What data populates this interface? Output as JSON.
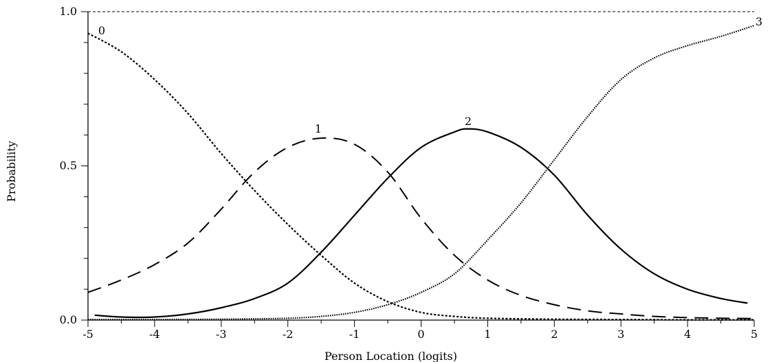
{
  "chart_data": {
    "type": "line",
    "title": "",
    "xlabel": "Person Location (logits)",
    "ylabel": "Probability",
    "xlim": [
      -5,
      5
    ],
    "ylim": [
      0,
      1
    ],
    "x_ticks": [
      "-5",
      "-4",
      "-3",
      "-2",
      "-1",
      "0",
      "1",
      "2",
      "3",
      "4",
      "5"
    ],
    "y_ticks": [
      "0.0",
      "0.5",
      "1.0"
    ],
    "reference_line_y": 1.0,
    "grid": false,
    "series": [
      {
        "name": "0",
        "style": "short-dash",
        "x": [
          -5,
          -4.5,
          -4,
          -3.5,
          -3,
          -2.5,
          -2,
          -1.5,
          -1,
          -0.5,
          0,
          0.5,
          1,
          2,
          3,
          4,
          5
        ],
        "y": [
          0.93,
          0.87,
          0.78,
          0.67,
          0.54,
          0.42,
          0.31,
          0.21,
          0.12,
          0.06,
          0.025,
          0.012,
          0.006,
          0.003,
          0.002,
          0.001,
          0.001
        ]
      },
      {
        "name": "1",
        "style": "long-dash",
        "x": [
          -5,
          -4.5,
          -4,
          -3.5,
          -3,
          -2.5,
          -2,
          -1.5,
          -1,
          -0.5,
          0,
          0.5,
          1,
          1.5,
          2,
          2.5,
          3,
          3.5,
          4,
          4.5,
          5
        ],
        "y": [
          0.09,
          0.13,
          0.18,
          0.25,
          0.36,
          0.48,
          0.56,
          0.59,
          0.57,
          0.48,
          0.33,
          0.21,
          0.13,
          0.08,
          0.05,
          0.03,
          0.02,
          0.012,
          0.008,
          0.006,
          0.005
        ]
      },
      {
        "name": "2",
        "style": "solid",
        "x": [
          -4.9,
          -4.5,
          -4,
          -3.5,
          -3,
          -2.5,
          -2,
          -1.5,
          -1,
          -0.5,
          0,
          0.5,
          0.7,
          1,
          1.5,
          2,
          2.5,
          3,
          3.5,
          4,
          4.5,
          4.9
        ],
        "y": [
          0.016,
          0.01,
          0.01,
          0.02,
          0.04,
          0.07,
          0.12,
          0.22,
          0.34,
          0.46,
          0.56,
          0.61,
          0.62,
          0.61,
          0.56,
          0.47,
          0.34,
          0.23,
          0.15,
          0.1,
          0.07,
          0.055
        ]
      },
      {
        "name": "3",
        "style": "dotted",
        "x": [
          -5,
          -4,
          -3,
          -2,
          -1.5,
          -1,
          -0.5,
          0,
          0.5,
          1,
          1.5,
          2,
          2.5,
          3,
          3.5,
          4,
          4.5,
          5
        ],
        "y": [
          0.002,
          0.002,
          0.003,
          0.006,
          0.012,
          0.025,
          0.05,
          0.09,
          0.15,
          0.26,
          0.38,
          0.52,
          0.66,
          0.78,
          0.85,
          0.89,
          0.92,
          0.955
        ]
      }
    ]
  }
}
